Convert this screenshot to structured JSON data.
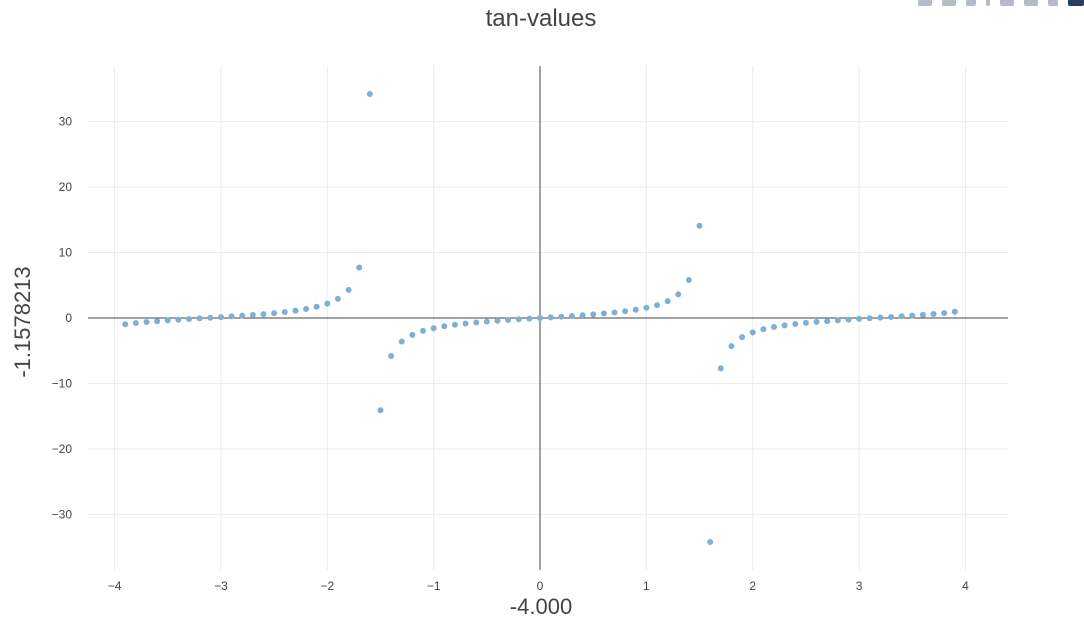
{
  "title": "tan-values",
  "toolbar": {
    "icons": [
      "camera-icon",
      "zoom-icon",
      "pan-icon",
      "select-icon",
      "zoom-in-icon",
      "zoom-out-icon",
      "autoscale-icon",
      "reset-axes-icon",
      "plotly-logo-icon"
    ]
  },
  "chart_data": {
    "type": "scatter",
    "title": "tan-values",
    "xlabel": "-4.000",
    "ylabel": "-1.1578213",
    "xlim": [
      -4.25,
      4.4
    ],
    "ylim": [
      -38.5,
      38.5
    ],
    "xticks": [
      -4,
      -3,
      -2,
      -1,
      0,
      1,
      2,
      3,
      4
    ],
    "xtick_labels": [
      "−4",
      "−3",
      "−2",
      "−1",
      "0",
      "1",
      "2",
      "3",
      "4"
    ],
    "yticks": [
      -30,
      -20,
      -10,
      0,
      10,
      20,
      30
    ],
    "ytick_labels": [
      "−30",
      "−20",
      "−10",
      "0",
      "10",
      "20",
      "30"
    ],
    "grid": true,
    "marker_color": "#7fb0d3",
    "zeroline_color": "#444444",
    "grid_color": "#ebebeb",
    "x": [
      -3.9,
      -3.8,
      -3.7,
      -3.6,
      -3.5,
      -3.4,
      -3.3,
      -3.2,
      -3.1,
      -3.0,
      -2.9,
      -2.8,
      -2.7,
      -2.6,
      -2.5,
      -2.4,
      -2.3,
      -2.2,
      -2.1,
      -2.0,
      -1.9,
      -1.8,
      -1.7,
      -1.6,
      -1.5,
      -1.4,
      -1.3,
      -1.2,
      -1.1,
      -1.0,
      -0.9,
      -0.8,
      -0.7,
      -0.6,
      -0.5,
      -0.4,
      -0.3,
      -0.2,
      -0.1,
      0.0,
      0.1,
      0.2,
      0.3,
      0.4,
      0.5,
      0.6,
      0.7,
      0.8,
      0.9,
      1.0,
      1.1,
      1.2,
      1.3,
      1.4,
      1.5,
      1.6,
      1.7,
      1.8,
      1.9,
      2.0,
      2.1,
      2.2,
      2.3,
      2.4,
      2.5,
      2.6,
      2.7,
      2.8,
      2.9,
      3.0,
      3.1,
      3.2,
      3.3,
      3.4,
      3.5,
      3.6,
      3.7,
      3.8,
      3.9
    ],
    "y": [
      -0.96,
      -0.77,
      -0.62,
      -0.49,
      -0.37,
      -0.26,
      -0.16,
      -0.06,
      0.04,
      0.14,
      0.24,
      0.36,
      0.47,
      0.6,
      0.75,
      0.92,
      1.12,
      1.37,
      1.71,
      2.19,
      2.93,
      4.29,
      7.7,
      34.23,
      -14.1,
      -5.8,
      -3.6,
      -2.57,
      -1.96,
      -1.56,
      -1.26,
      -1.03,
      -0.84,
      -0.68,
      -0.55,
      -0.42,
      -0.31,
      -0.2,
      -0.1,
      0.0,
      0.1,
      0.2,
      0.31,
      0.42,
      0.55,
      0.68,
      0.84,
      1.03,
      1.26,
      1.56,
      1.96,
      2.57,
      3.6,
      5.8,
      14.1,
      -34.23,
      -7.7,
      -4.29,
      -2.93,
      -2.19,
      -1.71,
      -1.37,
      -1.12,
      -0.92,
      -0.75,
      -0.6,
      -0.47,
      -0.36,
      -0.24,
      -0.14,
      -0.04,
      0.06,
      0.16,
      0.26,
      0.37,
      0.49,
      0.62,
      0.77,
      0.96
    ]
  }
}
